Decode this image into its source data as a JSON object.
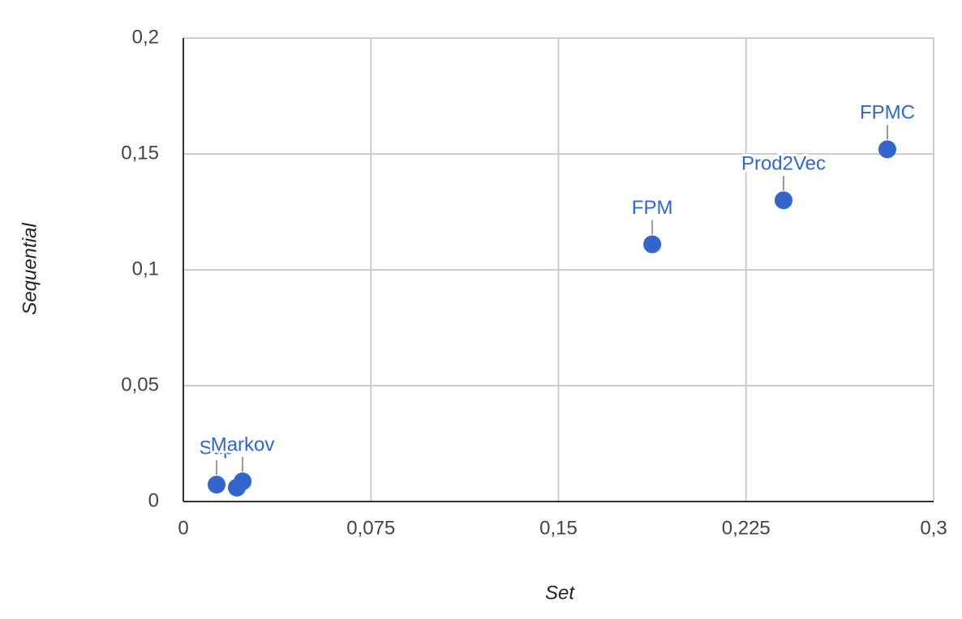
{
  "chart_data": {
    "type": "scatter",
    "x_label": "Set",
    "y_label": "Sequential",
    "x": [
      0.2815,
      0.24,
      0.1875,
      0.0133,
      0.0214,
      0.0237
    ],
    "values": [
      0.152,
      0.13,
      0.111,
      0.0073,
      0.006,
      0.0087
    ],
    "labels": [
      "FPMC",
      "Prod2Vec",
      "FPM",
      "Sup",
      null,
      "Markov"
    ],
    "color": "#3366cc",
    "xlim": [
      0,
      0.3
    ],
    "xticks": [
      0,
      {
        "value": 0.075,
        "label": "0,075"
      },
      {
        "value": 0.15,
        "label": "0,15"
      },
      {
        "value": 0.225,
        "label": "0,225"
      },
      {
        "value": 0.3,
        "label": "0,3"
      }
    ],
    "ylim": [
      0,
      0.2
    ],
    "yticks": [
      0,
      {
        "value": 0.05,
        "label": "0,05"
      },
      {
        "value": 0.1,
        "label": "0,1"
      },
      {
        "value": 0.15,
        "label": "0,15"
      },
      {
        "value": 0.2,
        "label": "0,2"
      }
    ],
    "grid": true
  }
}
